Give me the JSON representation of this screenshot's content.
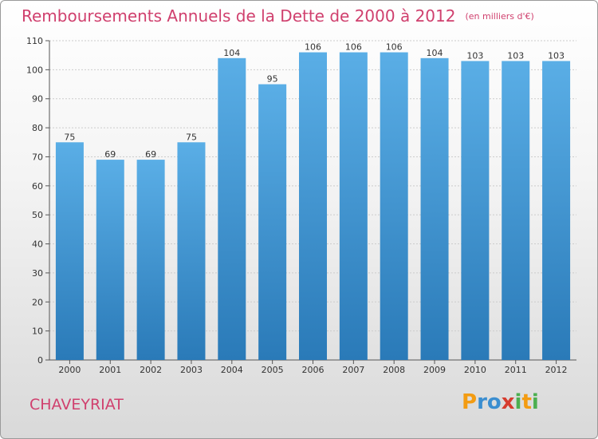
{
  "header": {
    "title": "Remboursements Annuels de la Dette de 2000 à 2012",
    "unit_note": "(en milliers d'€)"
  },
  "footer": {
    "commune": "CHAVEYRIAT",
    "logo_letters": [
      {
        "char": "P",
        "color": "#f39c12"
      },
      {
        "char": "r",
        "color": "#3b8ed0"
      },
      {
        "char": "o",
        "color": "#3b8ed0"
      },
      {
        "char": "x",
        "color": "#d63c2f"
      },
      {
        "char": "i",
        "color": "#4caf50"
      },
      {
        "char": "t",
        "color": "#f39c12"
      },
      {
        "char": "i",
        "color": "#4caf50"
      }
    ]
  },
  "colors": {
    "bar_top": "#5aaee6",
    "bar_bottom": "#2a7ab8",
    "text": "#333333",
    "title": "#d0406e",
    "grid": "#cccccc"
  },
  "chart_data": {
    "type": "bar",
    "title": "Remboursements Annuels de la Dette de 2000 à 2012",
    "subtitle": "(en milliers d'€)",
    "xlabel": "",
    "ylabel": "",
    "categories": [
      "2000",
      "2001",
      "2002",
      "2003",
      "2004",
      "2005",
      "2006",
      "2007",
      "2008",
      "2009",
      "2010",
      "2011",
      "2012"
    ],
    "values": [
      75,
      69,
      69,
      75,
      104,
      95,
      106,
      106,
      106,
      104,
      103,
      103,
      103
    ],
    "value_labels": [
      "75",
      "69",
      "69",
      "75",
      "104",
      "95",
      "106",
      "106",
      "106",
      "104",
      "103",
      "103",
      "103"
    ],
    "yticks": [
      0,
      10,
      20,
      30,
      40,
      50,
      60,
      70,
      80,
      90,
      100,
      110
    ],
    "ylim": [
      0,
      110
    ],
    "grid": true
  }
}
